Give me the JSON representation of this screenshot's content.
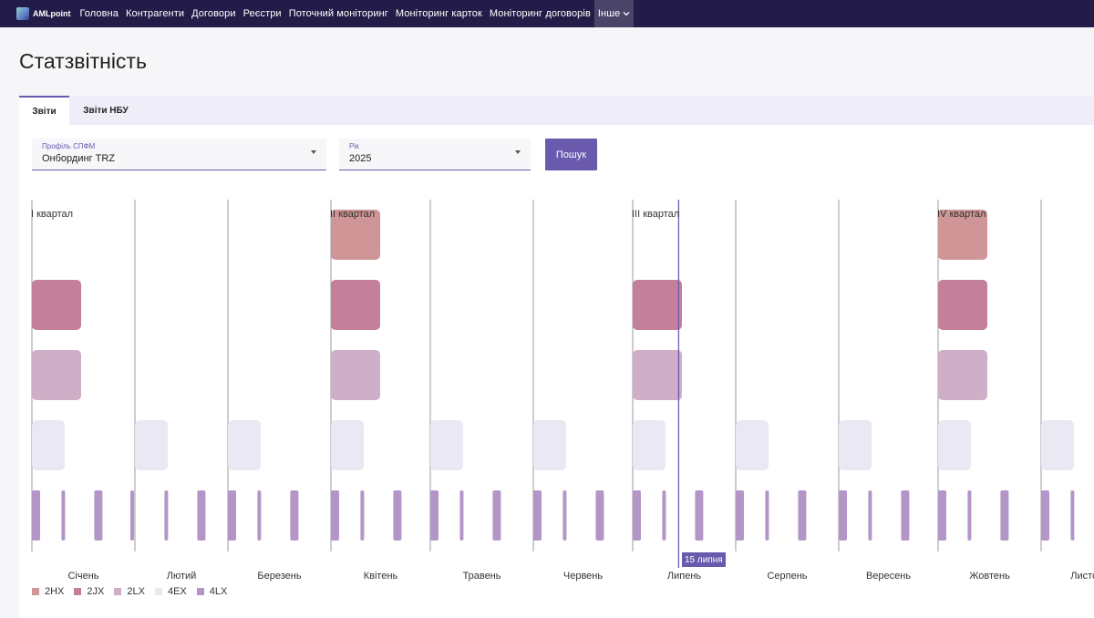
{
  "nav": {
    "logo_text": "AMLpoint",
    "items": [
      "Головна",
      "Контрагенти",
      "Договори",
      "Реєстри",
      "Поточний моніторинг",
      "Моніторинг карток",
      "Моніторинг договорів"
    ],
    "more_label": "Інше",
    "more_icon": "chevron-down-icon"
  },
  "page_title": "Статзвітність",
  "tabs": [
    "Звіти",
    "Звіти НБУ"
  ],
  "filters": {
    "profile_label": "Профіль СПФМ",
    "profile_value": "Онбординг TRZ",
    "year_label": "Рік",
    "year_value": "2025",
    "search_label": "Пошук"
  },
  "quarters": [
    "I квартал",
    "II квартал",
    "III квартал",
    "IV квартал"
  ],
  "today_label": "15 липня",
  "colors": {
    "accent": "#6a5aad",
    "nav_bg": "#241c48",
    "2HX": "#cf9597",
    "2JX": "#c4809b",
    "2LX": "#cfaec7",
    "4EX": "#e9e8f3",
    "4LX": "#b396c7"
  },
  "chart_data": {
    "type": "timeline",
    "year": 2025,
    "months": [
      "Січень",
      "Лютий",
      "Березень",
      "Квітень",
      "Травень",
      "Червень",
      "Липень",
      "Серпень",
      "Вересень",
      "Жовтень",
      "Листопад"
    ],
    "series": [
      {
        "name": "2HX",
        "periods": [
          {
            "start": "2025-04-01",
            "end": "2025-04-15"
          },
          {
            "start": "2025-10-01",
            "end": "2025-10-15"
          }
        ]
      },
      {
        "name": "2JX",
        "periods": [
          {
            "start": "2025-01-01",
            "end": "2025-01-15"
          },
          {
            "start": "2025-04-01",
            "end": "2025-04-15"
          },
          {
            "start": "2025-07-01",
            "end": "2025-07-15"
          },
          {
            "start": "2025-10-01",
            "end": "2025-10-15"
          }
        ]
      },
      {
        "name": "2LX",
        "periods": [
          {
            "start": "2025-01-01",
            "end": "2025-01-15"
          },
          {
            "start": "2025-04-01",
            "end": "2025-04-15"
          },
          {
            "start": "2025-07-01",
            "end": "2025-07-15"
          },
          {
            "start": "2025-10-01",
            "end": "2025-10-15"
          }
        ]
      },
      {
        "name": "4EX",
        "periods": [
          {
            "start": "2025-01-01",
            "end": "2025-01-10"
          },
          {
            "start": "2025-02-01",
            "end": "2025-02-10"
          },
          {
            "start": "2025-03-01",
            "end": "2025-03-10"
          },
          {
            "start": "2025-04-01",
            "end": "2025-04-10"
          },
          {
            "start": "2025-05-01",
            "end": "2025-05-10"
          },
          {
            "start": "2025-06-01",
            "end": "2025-06-10"
          },
          {
            "start": "2025-07-01",
            "end": "2025-07-10"
          },
          {
            "start": "2025-08-01",
            "end": "2025-08-10"
          },
          {
            "start": "2025-09-01",
            "end": "2025-09-10"
          },
          {
            "start": "2025-10-01",
            "end": "2025-10-10"
          },
          {
            "start": "2025-11-01",
            "end": "2025-11-10"
          }
        ]
      }
    ],
    "series_4lx": {
      "name": "4LX",
      "dates": [
        "2025-01-01",
        "2025-01-10",
        "2025-01-20",
        "2025-01-31",
        "2025-02-10",
        "2025-02-20",
        "2025-03-01",
        "2025-03-10",
        "2025-03-20",
        "2025-04-01",
        "2025-04-10",
        "2025-04-20",
        "2025-05-01",
        "2025-05-10",
        "2025-05-20",
        "2025-06-01",
        "2025-06-10",
        "2025-06-20",
        "2025-07-01",
        "2025-07-10",
        "2025-07-20",
        "2025-08-01",
        "2025-08-10",
        "2025-08-20",
        "2025-09-01",
        "2025-09-10",
        "2025-09-20",
        "2025-10-01",
        "2025-10-10",
        "2025-10-20",
        "2025-11-01",
        "2025-11-10"
      ]
    },
    "today": "2025-07-15",
    "legend": [
      "2HX",
      "2JX",
      "2LX",
      "4EX",
      "4LX"
    ]
  }
}
